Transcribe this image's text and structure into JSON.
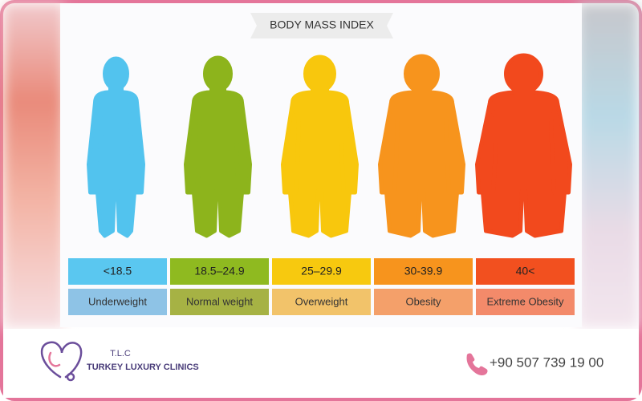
{
  "title": "BODY MASS INDEX",
  "categories": [
    {
      "range": "<18.5",
      "label": "Underweight"
    },
    {
      "range": "18.5–24.9",
      "label": "Normal weight"
    },
    {
      "range": "25–29.9",
      "label": "Overweight"
    },
    {
      "range": "30-39.9",
      "label": "Obesity"
    },
    {
      "range": "40<",
      "label": "Extreme Obesity"
    }
  ],
  "footer": {
    "logo_initials": "T.L.C",
    "brand": "TURKEY LUXURY CLINICS",
    "phone": "+90 507 739 19 00"
  }
}
